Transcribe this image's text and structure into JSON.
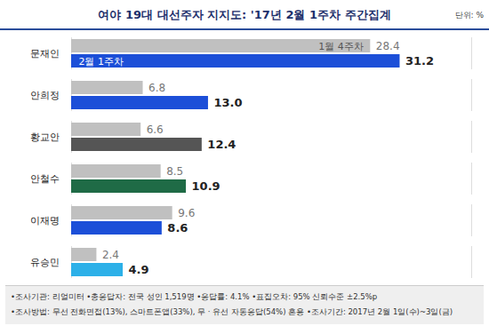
{
  "chart_data": {
    "type": "bar",
    "orientation": "horizontal",
    "title": "여야 19대 대선주자 지지도: '17년 2월 1주차 주간집계",
    "subtitle": "단위: %",
    "categories": [
      "문재인",
      "안희정",
      "황교안",
      "안철수",
      "이재명",
      "유승민"
    ],
    "series": [
      {
        "name": "1월 4주차",
        "color": "#c0c0c0",
        "values": [
          28.4,
          6.8,
          6.6,
          8.5,
          9.6,
          2.4
        ]
      },
      {
        "name": "2월 1주차",
        "colors": [
          "#1c4fd8",
          "#1c4fd8",
          "#555555",
          "#1f6b46",
          "#1c4fd8",
          "#2cb0e8"
        ],
        "values": [
          31.2,
          13.0,
          12.4,
          10.9,
          8.6,
          4.9
        ],
        "value_labels": [
          "31.2",
          "13.0",
          "12.4",
          "10.9",
          "8.6",
          "4.9"
        ]
      }
    ],
    "xlim": [
      0,
      38
    ],
    "data_labels": true,
    "tick_labels": "y",
    "annotations": [
      "•조사기관: 리얼미터 •총응답자: 전국 성인 1,519명 •응답률: 4.1% •표집오차: 95% 신뢰수준 ±2.5%p",
      "•조사방법: 무선 전화면접(13%), 스마트폰앱(33%), 무 · 유선 자동응답(54%) 혼용 •조사기간: 2017년 2월 1일(수)~3일(금)"
    ]
  }
}
